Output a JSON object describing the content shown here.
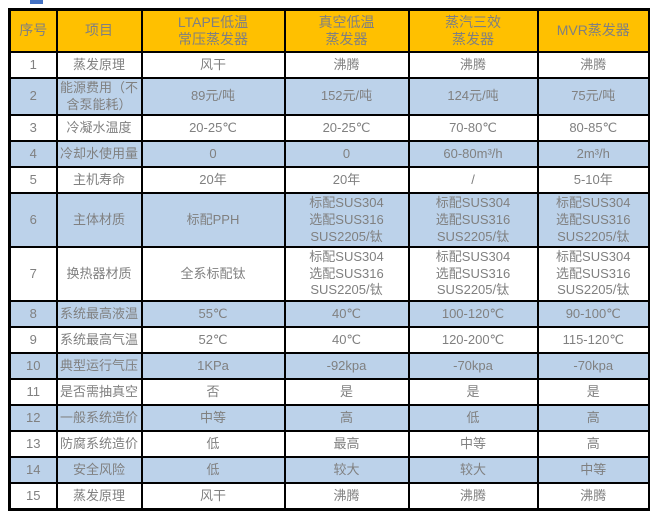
{
  "colors": {
    "header_bg": "#FFC000",
    "alt_row_bg": "#BCD2EA",
    "text": "#808080",
    "border": "#000000",
    "handle": "#4472C4"
  },
  "table": {
    "headers": [
      "序号",
      "项目",
      "LTAPE低温\n常压蒸发器",
      "真空低温\n蒸发器",
      "蒸汽三效\n蒸发器",
      "MVR蒸发器"
    ],
    "rows": [
      [
        "1",
        "蒸发原理",
        "风干",
        "沸腾",
        "沸腾",
        "沸腾"
      ],
      [
        "2",
        "能源费用（不含泵能耗）",
        "89元/吨",
        "152元/吨",
        "124元/吨",
        "75元/吨"
      ],
      [
        "3",
        "冷凝水温度",
        "20-25℃",
        "20-25℃",
        "70-80℃",
        "80-85℃"
      ],
      [
        "4",
        "冷却水使用量",
        "0",
        "0",
        "60-80m³/h",
        "2m³/h"
      ],
      [
        "5",
        "主机寿命",
        "20年",
        "20年",
        "/",
        "5-10年"
      ],
      [
        "6",
        "主体材质",
        "标配PPH",
        "标配SUS304\n选配SUS316\nSUS2205/钛",
        "标配SUS304\n选配SUS316\nSUS2205/钛",
        "标配SUS304\n选配SUS316\nSUS2205/钛"
      ],
      [
        "7",
        "换热器材质",
        "全系标配钛",
        "标配SUS304\n选配SUS316\nSUS2205/钛",
        "标配SUS304\n选配SUS316\nSUS2205/钛",
        "标配SUS304\n选配SUS316\nSUS2205/钛"
      ],
      [
        "8",
        "系统最高液温",
        "55℃",
        "40℃",
        "100-120℃",
        "90-100℃"
      ],
      [
        "9",
        "系统最高气温",
        "52℃",
        "40℃",
        "120-200℃",
        "115-120℃"
      ],
      [
        "10",
        "典型运行气压",
        "1KPa",
        "-92kpa",
        "-70kpa",
        "-70kpa"
      ],
      [
        "11",
        "是否需抽真空",
        "否",
        "是",
        "是",
        "是"
      ],
      [
        "12",
        "一般系统造价",
        "中等",
        "高",
        "低",
        "高"
      ],
      [
        "13",
        "防腐系统造价",
        "低",
        "最高",
        "中等",
        "高"
      ],
      [
        "14",
        "安全风险",
        "低",
        "较大",
        "较大",
        "中等"
      ],
      [
        "15",
        "蒸发原理",
        "风干",
        "沸腾",
        "沸腾",
        "沸腾"
      ]
    ]
  }
}
